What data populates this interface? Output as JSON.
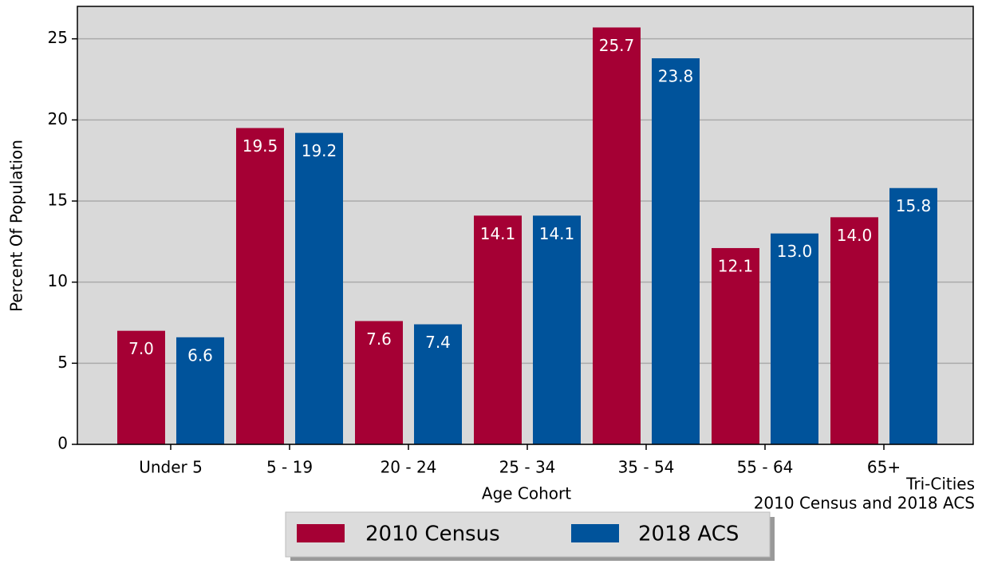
{
  "chart_data": {
    "type": "bar",
    "categories": [
      "Under 5",
      "5 - 19",
      "20 - 24",
      "25 - 34",
      "35 - 54",
      "55 - 64",
      "65+"
    ],
    "series": [
      {
        "name": "2010 Census",
        "color": "#a50034",
        "values": [
          7.0,
          19.5,
          7.6,
          14.1,
          25.7,
          12.1,
          14.0
        ],
        "value_labels": [
          "7.0",
          "19.5",
          "7.6",
          "14.1",
          "25.7",
          "12.1",
          "14.0"
        ]
      },
      {
        "name": "2018 ACS",
        "color": "#00539b",
        "values": [
          6.6,
          19.2,
          7.4,
          14.1,
          23.8,
          13.0,
          15.8
        ],
        "value_labels": [
          "6.6",
          "19.2",
          "7.4",
          "14.1",
          "23.8",
          "13.0",
          "15.8"
        ]
      }
    ],
    "xlabel": "Age Cohort",
    "ylabel": "Percent Of Population",
    "annotation": [
      "Tri-Cities",
      "2010 Census and 2018 ACS"
    ],
    "ylim": [
      0,
      27
    ],
    "yticks": [
      0,
      5,
      10,
      15,
      20,
      25
    ],
    "grid": true,
    "legend": "bottom"
  }
}
